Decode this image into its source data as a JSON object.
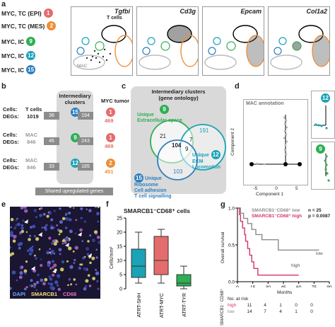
{
  "colors": {
    "c1": "#e46c6c",
    "c2": "#ed8f3a",
    "c9": "#2fae55",
    "c12": "#1aa3b6",
    "c15": "#2e7fbf",
    "gray": "#8c8c8c",
    "magenta": "#d6336c"
  },
  "panel_a": {
    "label": "a",
    "rows": [
      {
        "text": "MYC, TC (EPI)",
        "num": "1",
        "color": "#e46c6c"
      },
      {
        "text": "MYC, TC (MES)",
        "num": "2",
        "color": "#ed8f3a"
      },
      {
        "text": "MYC, IC",
        "num": "9",
        "color": "#2fae55"
      },
      {
        "text": "MYC, IC",
        "num": "12",
        "color": "#1aa3b6"
      },
      {
        "text": "MYC, IC",
        "num": "15",
        "color": "#2e7fbf"
      }
    ],
    "umaps": [
      {
        "gene": "Tgfbi",
        "tcells": "T cells",
        "mac": "MAC"
      },
      {
        "gene": "Cd3g"
      },
      {
        "gene": "Epcam"
      },
      {
        "gene": "Col1a2"
      }
    ]
  },
  "panel_b": {
    "label": "b",
    "intermediary": "Intermediary clusters",
    "myc": "MYC tumor",
    "rows": [
      {
        "cells": "Cells:",
        "degs": "DEGs:",
        "left_name": "T cells",
        "left_val": "1019",
        "box_l": "36",
        "badge": "15",
        "box_r": "194",
        "right_badge": "1",
        "right_val": "469"
      },
      {
        "cells": "Cells:",
        "degs": "DEGs:",
        "left_name": "MAC",
        "left_val": "846",
        "box_l": "46",
        "badge": "9",
        "box_r": "243",
        "right_badge": "1",
        "right_val": "469"
      },
      {
        "cells": "Cells:",
        "degs": "DEGs:",
        "left_name": "MAC",
        "left_val": "846",
        "box_l": "33",
        "badge": "12",
        "box_r": "185",
        "right_badge": "2",
        "right_val": "451"
      }
    ],
    "footer": "Shared upregulated genes"
  },
  "panel_c": {
    "label": "c",
    "title1": "Intermediary clusters",
    "title2": "(gene ontology)",
    "green": {
      "badge": "9",
      "line1": "Unique",
      "line2": "Extracellular space",
      "val": "21"
    },
    "center": "104",
    "v7": "7",
    "v9": "9",
    "teal": {
      "val": "191",
      "badge": "12",
      "line1": "Unique",
      "line2": "ECM",
      "line3": "Locomotion"
    },
    "blue": {
      "val": "103",
      "badge": "15",
      "line1": "Unique",
      "line2": "Ribosome",
      "line3": "Cell adhesion",
      "line4": "T cell signalling"
    }
  },
  "panel_d": {
    "label": "d",
    "annot": "MAC annotation",
    "ylabel": "Component 2",
    "xlabel": "Component 1",
    "ticks_x": [
      "-5",
      "0",
      "5"
    ],
    "ticks_y": [
      "2",
      "0",
      "-2"
    ],
    "b1": "12",
    "b2": "9"
  },
  "panel_e": {
    "label": "e",
    "legend": [
      "DAPI",
      "SMARCB1",
      "CD68"
    ]
  },
  "panel_f": {
    "label": "f",
    "title": "SMARCB1⁻CD68⁺ cells",
    "ylabel": "Cells/mm²"
  },
  "panel_g": {
    "label": "g",
    "ylabel": "Overall survival",
    "xlabel": "Months",
    "legend_low": "SMARCB1⁻CD68⁺ low",
    "legend_high": "SMARCB1⁻CD68⁺ high",
    "n": "n = 25",
    "p": "p = 0.0087",
    "low": "low",
    "high": "high",
    "risk_title": "No. at risk",
    "risk_rows": [
      [
        "high",
        "11",
        "4",
        "1",
        "0",
        "0"
      ],
      [
        "low",
        "14",
        "7",
        "4",
        "1",
        "0"
      ]
    ],
    "side": "SMARCB1⁻ CD68⁺"
  },
  "chart_data": [
    {
      "type": "box",
      "title": "SMARCB1⁻CD68⁺ cells",
      "ylabel": "Cells/mm²",
      "ylim": [
        0,
        25
      ],
      "yticks": [
        0,
        5,
        10,
        15,
        20,
        25
      ],
      "categories": [
        "ATRT-SHH",
        "ATRT-MYC",
        "ATRT-TYR"
      ],
      "boxes": [
        {
          "name": "ATRT-SHH",
          "min": 2,
          "q1": 4,
          "median": 8,
          "q3": 14,
          "max": 20,
          "color": "#1aa3b6"
        },
        {
          "name": "ATRT-MYC",
          "min": 2,
          "q1": 5,
          "median": 10,
          "q3": 18.5,
          "max": 21,
          "color": "#e46c6c"
        },
        {
          "name": "ATRT-TYR",
          "min": 0,
          "q1": 1,
          "median": 2,
          "q3": 5,
          "max": 8,
          "color": "#2fae55"
        }
      ]
    },
    {
      "type": "line",
      "title": "",
      "xlabel": "Months",
      "ylabel": "Overall survival",
      "xlim": [
        0,
        90
      ],
      "ylim": [
        0,
        1
      ],
      "xticks": [
        0,
        15,
        30,
        45,
        60,
        75,
        90
      ],
      "yticks": [
        0,
        0.5,
        1.0
      ],
      "series": [
        {
          "name": "low",
          "color": "#8c8c8c",
          "x": [
            0,
            3,
            6,
            10,
            14,
            18,
            24,
            30,
            40,
            60,
            80
          ],
          "y": [
            1,
            0.93,
            0.86,
            0.79,
            0.71,
            0.64,
            0.57,
            0.57,
            0.43,
            0.43,
            0.43
          ]
        },
        {
          "name": "high",
          "color": "#d6336c",
          "x": [
            0,
            2,
            3,
            5,
            7,
            8,
            10,
            12,
            14,
            16,
            20,
            30,
            60
          ],
          "y": [
            1,
            0.91,
            0.82,
            0.73,
            0.64,
            0.55,
            0.45,
            0.36,
            0.27,
            0.18,
            0.09,
            0.09,
            0.09
          ]
        }
      ]
    }
  ]
}
